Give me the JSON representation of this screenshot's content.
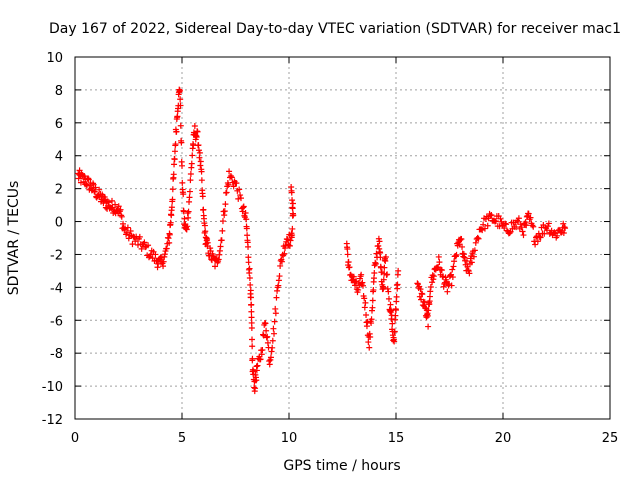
{
  "chart_data": {
    "type": "scatter",
    "title": "Day 167 of 2022, Sidereal Day-to-day VTEC variation (SDTVAR) for receiver mac1",
    "xlabel": "GPS time / hours",
    "ylabel": "SDTVAR / TECUs",
    "xlim": [
      0,
      25
    ],
    "ylim": [
      -12,
      10
    ],
    "xticks": [
      0,
      5,
      10,
      15,
      20,
      25
    ],
    "yticks": [
      -12,
      -10,
      -8,
      -6,
      -4,
      -2,
      0,
      2,
      4,
      6,
      8,
      10
    ],
    "grid": true,
    "marker": "+",
    "color": "#ff0000",
    "series": [
      {
        "name": "SDTVAR",
        "segments": [
          [
            [
              0.15,
              2.8
            ],
            [
              0.3,
              2.6
            ],
            [
              0.5,
              2.5
            ],
            [
              0.7,
              2.2
            ],
            [
              0.9,
              1.9
            ],
            [
              1.1,
              1.6
            ],
            [
              1.3,
              1.3
            ],
            [
              1.5,
              1.1
            ],
            [
              1.7,
              0.9
            ],
            [
              1.9,
              0.9
            ],
            [
              2.1,
              0.6
            ],
            [
              2.3,
              -0.5
            ],
            [
              2.6,
              -0.9
            ],
            [
              2.9,
              -1.2
            ],
            [
              3.2,
              -1.5
            ],
            [
              3.5,
              -1.9
            ],
            [
              3.8,
              -2.3
            ],
            [
              4.0,
              -2.6
            ],
            [
              4.2,
              -2.1
            ],
            [
              4.4,
              -1.0
            ],
            [
              4.5,
              0.5
            ],
            [
              4.6,
              2.5
            ],
            [
              4.7,
              5.0
            ],
            [
              4.8,
              7.0
            ],
            [
              4.9,
              8.2
            ],
            [
              5.0,
              3.0
            ],
            [
              5.1,
              0.0
            ],
            [
              5.2,
              -0.6
            ],
            [
              5.35,
              1.5
            ],
            [
              5.5,
              4.5
            ],
            [
              5.6,
              5.5
            ],
            [
              5.75,
              5.0
            ],
            [
              5.9,
              3.0
            ],
            [
              6.0,
              0.5
            ],
            [
              6.1,
              -1.0
            ],
            [
              6.2,
              -1.6
            ],
            [
              6.4,
              -2.2
            ],
            [
              6.6,
              -2.6
            ],
            [
              6.8,
              -1.5
            ],
            [
              7.0,
              1.0
            ],
            [
              7.2,
              2.8
            ],
            [
              7.5,
              2.3
            ],
            [
              7.8,
              1.0
            ],
            [
              8.0,
              0.0
            ],
            [
              8.1,
              -2.0
            ],
            [
              8.2,
              -4.0
            ],
            [
              8.25,
              -6.0
            ],
            [
              8.3,
              -9.0
            ],
            [
              8.4,
              -10.0
            ],
            [
              8.5,
              -9.0
            ],
            [
              8.7,
              -8.0
            ],
            [
              8.9,
              -6.0
            ],
            [
              9.1,
              -8.5
            ],
            [
              9.3,
              -6.5
            ],
            [
              9.5,
              -3.5
            ],
            [
              9.7,
              -2.0
            ],
            [
              9.9,
              -1.0
            ],
            [
              10.1,
              -1.2
            ],
            [
              10.2,
              0.5
            ],
            [
              10.1,
              2.1
            ]
          ],
          [
            [
              12.7,
              -1.3
            ],
            [
              12.8,
              -3.0
            ],
            [
              13.0,
              -3.5
            ],
            [
              13.2,
              -4.2
            ],
            [
              13.4,
              -3.5
            ],
            [
              13.6,
              -5.5
            ],
            [
              13.75,
              -7.5
            ],
            [
              13.9,
              -5.0
            ],
            [
              14.0,
              -3.0
            ],
            [
              14.2,
              -1.0
            ],
            [
              14.3,
              -3.0
            ],
            [
              14.4,
              -4.0
            ],
            [
              14.5,
              -2.0
            ],
            [
              14.7,
              -5.0
            ],
            [
              14.8,
              -6.0
            ],
            [
              14.9,
              -7.5
            ],
            [
              15.0,
              -5.0
            ],
            [
              15.1,
              -3.0
            ]
          ],
          [
            [
              16.0,
              -4.0
            ],
            [
              16.2,
              -4.5
            ],
            [
              16.4,
              -5.5
            ],
            [
              16.5,
              -6.0
            ],
            [
              16.6,
              -4.0
            ],
            [
              16.8,
              -3.0
            ],
            [
              17.0,
              -2.5
            ],
            [
              17.2,
              -3.5
            ],
            [
              17.4,
              -4.0
            ],
            [
              17.6,
              -3.5
            ],
            [
              17.8,
              -2.0
            ],
            [
              18.0,
              -1.0
            ],
            [
              18.2,
              -2.5
            ],
            [
              18.4,
              -3.0
            ],
            [
              18.6,
              -2.0
            ],
            [
              18.9,
              -0.5
            ],
            [
              19.2,
              0.0
            ],
            [
              19.5,
              0.2
            ],
            [
              19.8,
              0.0
            ],
            [
              20.1,
              -0.5
            ],
            [
              20.4,
              -0.3
            ],
            [
              20.7,
              -0.1
            ],
            [
              21.0,
              -0.5
            ],
            [
              21.2,
              0.3
            ],
            [
              21.5,
              -1.0
            ],
            [
              21.8,
              -0.6
            ],
            [
              22.1,
              -0.2
            ],
            [
              22.4,
              -0.8
            ],
            [
              22.7,
              -0.5
            ],
            [
              22.9,
              -0.4
            ]
          ]
        ]
      }
    ]
  }
}
